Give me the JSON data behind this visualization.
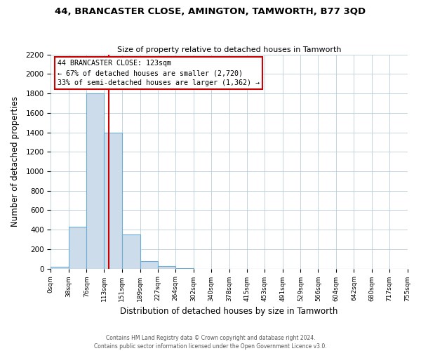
{
  "title": "44, BRANCASTER CLOSE, AMINGTON, TAMWORTH, B77 3QD",
  "subtitle": "Size of property relative to detached houses in Tamworth",
  "xlabel": "Distribution of detached houses by size in Tamworth",
  "ylabel": "Number of detached properties",
  "bar_edges": [
    0,
    38,
    76,
    113,
    151,
    189,
    227,
    264,
    302,
    340,
    378,
    415,
    453,
    491,
    529,
    566,
    604,
    642,
    680,
    717,
    755
  ],
  "bar_heights": [
    20,
    430,
    1800,
    1400,
    350,
    75,
    25,
    5,
    0,
    0,
    0,
    0,
    0,
    0,
    0,
    0,
    0,
    0,
    0,
    0
  ],
  "bar_color": "#cddcea",
  "bar_edge_color": "#6aaed6",
  "property_line_x": 123,
  "property_line_color": "#cc0000",
  "annotation_box_edge_color": "#cc0000",
  "annotation_text_line1": "44 BRANCASTER CLOSE: 123sqm",
  "annotation_text_line2": "← 67% of detached houses are smaller (2,720)",
  "annotation_text_line3": "33% of semi-detached houses are larger (1,362) →",
  "ylim": [
    0,
    2200
  ],
  "xlim": [
    0,
    755
  ],
  "yticks": [
    0,
    200,
    400,
    600,
    800,
    1000,
    1200,
    1400,
    1600,
    1800,
    2000,
    2200
  ],
  "tick_labels": [
    "0sqm",
    "38sqm",
    "76sqm",
    "113sqm",
    "151sqm",
    "189sqm",
    "227sqm",
    "264sqm",
    "302sqm",
    "340sqm",
    "378sqm",
    "415sqm",
    "453sqm",
    "491sqm",
    "529sqm",
    "566sqm",
    "604sqm",
    "642sqm",
    "680sqm",
    "717sqm",
    "755sqm"
  ],
  "footer_line1": "Contains HM Land Registry data © Crown copyright and database right 2024.",
  "footer_line2": "Contains public sector information licensed under the Open Government Licence v3.0.",
  "background_color": "#ffffff",
  "grid_color": "#b8cdd8"
}
